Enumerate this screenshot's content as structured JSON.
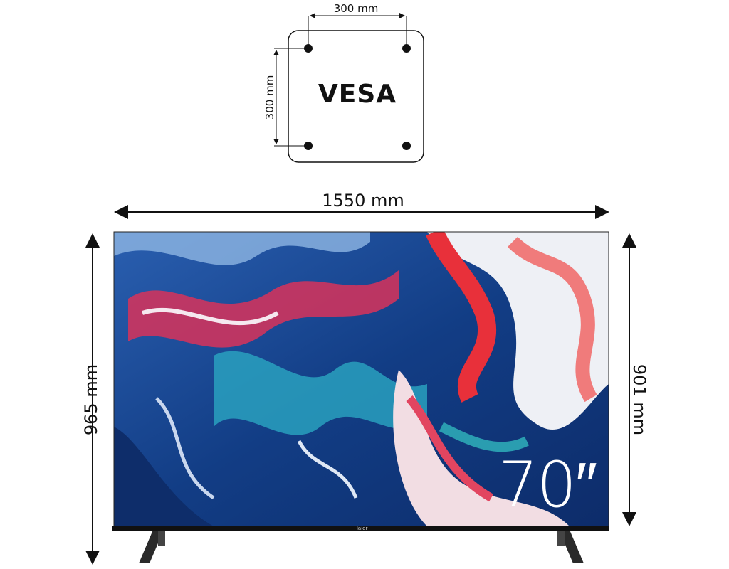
{
  "vesa": {
    "title": "VESA",
    "width_label": "300 mm",
    "height_label": "300 mm"
  },
  "dimensions": {
    "width": "1550 mm",
    "total_height": "965 mm",
    "screen_height": "901 mm"
  },
  "tv": {
    "screen_size": "70″",
    "brand": "Haier"
  },
  "colors": {
    "line": "#111111",
    "screen_blue": "#1d4f9a",
    "screen_red": "#e8303a",
    "bezel": "#111111"
  }
}
